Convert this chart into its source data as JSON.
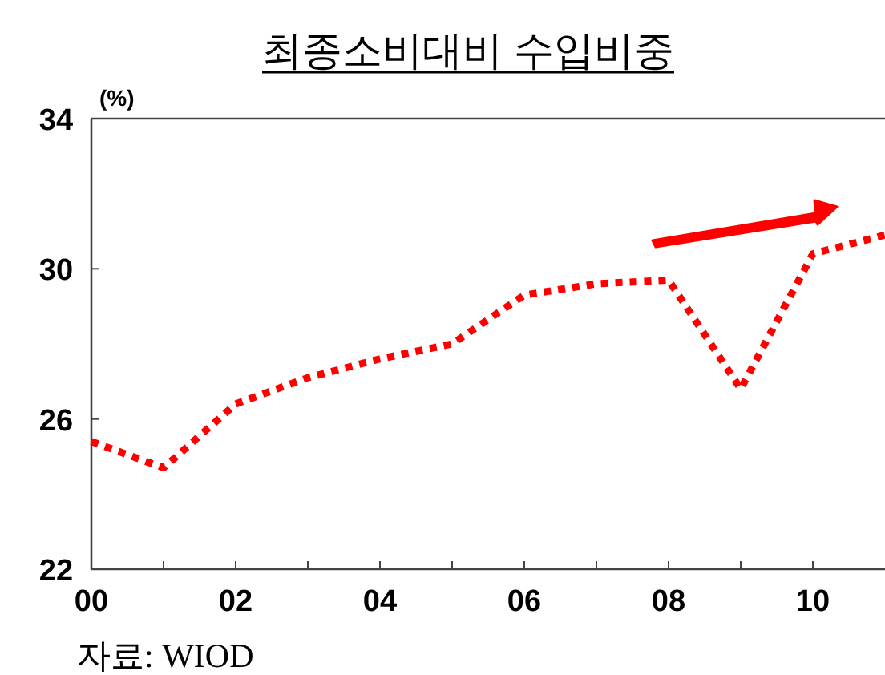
{
  "chart_data": {
    "type": "line",
    "title": "최종소비대비 수입비중",
    "ylabel": "(%)",
    "annotations": [
      "자료: WIOD"
    ],
    "x": [
      0,
      1,
      2,
      3,
      4,
      5,
      6,
      7,
      8,
      9,
      10,
      11
    ],
    "series": [
      {
        "color": "#ff0000",
        "values": [
          25.4,
          24.7,
          26.4,
          27.1,
          27.6,
          28.0,
          29.3,
          29.6,
          29.7,
          26.8,
          30.4,
          30.9
        ]
      }
    ],
    "xlim": [
      0,
      11
    ],
    "ylim": [
      22,
      34
    ],
    "xticks": [
      {
        "value": 0,
        "label": "00"
      },
      {
        "value": 1,
        "label": null
      },
      {
        "value": 2,
        "label": "02"
      },
      {
        "value": 3,
        "label": null
      },
      {
        "value": 4,
        "label": "04"
      },
      {
        "value": 5,
        "label": null
      },
      {
        "value": 6,
        "label": "06"
      },
      {
        "value": 7,
        "label": null
      },
      {
        "value": 8,
        "label": "08"
      },
      {
        "value": 9,
        "label": null
      },
      {
        "value": 10,
        "label": "10"
      }
    ],
    "yticks": [
      22,
      26,
      30,
      34
    ],
    "grid": false,
    "marker": "none",
    "line_style": "dotted"
  }
}
